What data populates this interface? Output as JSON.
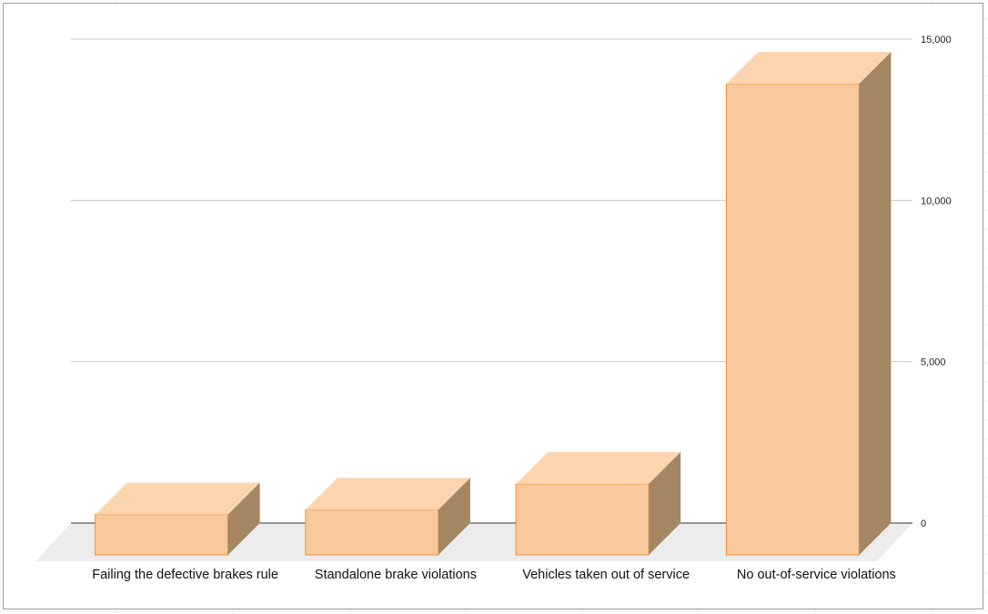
{
  "chart_data": {
    "type": "bar",
    "style": "3d",
    "categories": [
      "Failing the defective brakes rule",
      "Standalone brake violations",
      "Vehicles taken out of service",
      "No out-of-service violations"
    ],
    "values": [
      1250,
      1400,
      2200,
      14600
    ],
    "ylim": [
      0,
      15000
    ],
    "yticks": [
      0,
      5000,
      10000,
      15000
    ],
    "ytick_labels": [
      "0",
      "5,000",
      "10,000",
      "15,000"
    ],
    "y_axis_side": "right",
    "grid": true,
    "legend": "none",
    "colors": {
      "front": "#f8c99c",
      "top": "#fad5b0",
      "side": "#a58663",
      "edge": "#e8913a",
      "floor": "#ececec",
      "gridline": "#c8c8c8",
      "baseline": "#333333"
    }
  }
}
